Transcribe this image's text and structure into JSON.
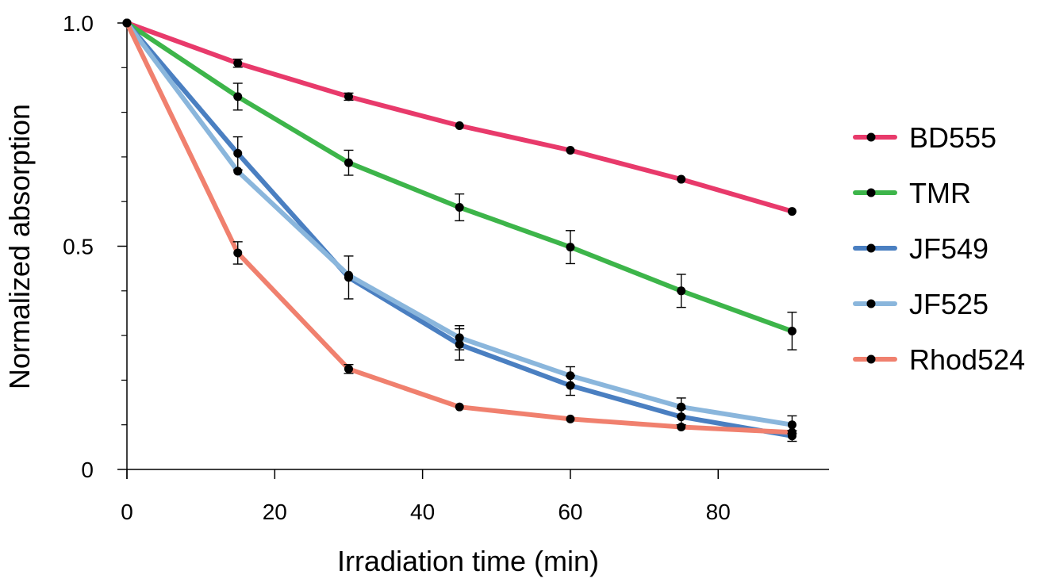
{
  "chart_data": {
    "type": "line",
    "xlabel": "Irradiation time (min)",
    "ylabel": "Normalized absorption",
    "xlim": [
      0,
      95
    ],
    "ylim": [
      0,
      1.0
    ],
    "x_ticks": [
      {
        "value": 0,
        "label": "0"
      },
      {
        "value": 20,
        "label": "20"
      },
      {
        "value": 40,
        "label": "40"
      },
      {
        "value": 60,
        "label": "60"
      },
      {
        "value": 80,
        "label": "80"
      }
    ],
    "y_ticks": [
      {
        "value": 0,
        "label": "0"
      },
      {
        "value": 0.5,
        "label": "0.5"
      },
      {
        "value": 1.0,
        "label": "1.0"
      }
    ],
    "y_minor_ticks": [
      0.1,
      0.2,
      0.3,
      0.4,
      0.6,
      0.7,
      0.8,
      0.9
    ],
    "x": [
      0,
      15,
      30,
      45,
      60,
      75,
      90
    ],
    "legend_position": "right",
    "grid": false,
    "series": [
      {
        "name": "BD555",
        "color": "#E83A6B",
        "values": [
          1.0,
          0.91,
          0.835,
          0.77,
          0.715,
          0.65,
          0.578
        ],
        "errors": [
          0,
          0.009,
          0.008,
          0,
          0,
          0,
          0
        ]
      },
      {
        "name": "TMR",
        "color": "#3DB54A",
        "values": [
          1.0,
          0.835,
          0.687,
          0.587,
          0.498,
          0.4,
          0.31
        ],
        "errors": [
          0,
          0.03,
          0.028,
          0.03,
          0.037,
          0.037,
          0.042
        ]
      },
      {
        "name": "JF549",
        "color": "#4A7FC1",
        "values": [
          1.0,
          0.708,
          0.43,
          0.28,
          0.188,
          0.118,
          0.075
        ],
        "errors": [
          0,
          0.037,
          0.048,
          0.035,
          0.022,
          0.018,
          0.012
        ]
      },
      {
        "name": "JF525",
        "color": "#8AB6DC",
        "values": [
          1.0,
          0.668,
          0.435,
          0.295,
          0.21,
          0.14,
          0.1
        ],
        "errors": [
          0,
          0,
          0,
          0.027,
          0.02,
          0.02,
          0.02
        ]
      },
      {
        "name": "Rhod524",
        "color": "#F0806E",
        "values": [
          1.0,
          0.485,
          0.225,
          0.14,
          0.113,
          0.095,
          0.083
        ],
        "errors": [
          0,
          0.025,
          0.01,
          0,
          0,
          0,
          0
        ]
      }
    ]
  }
}
